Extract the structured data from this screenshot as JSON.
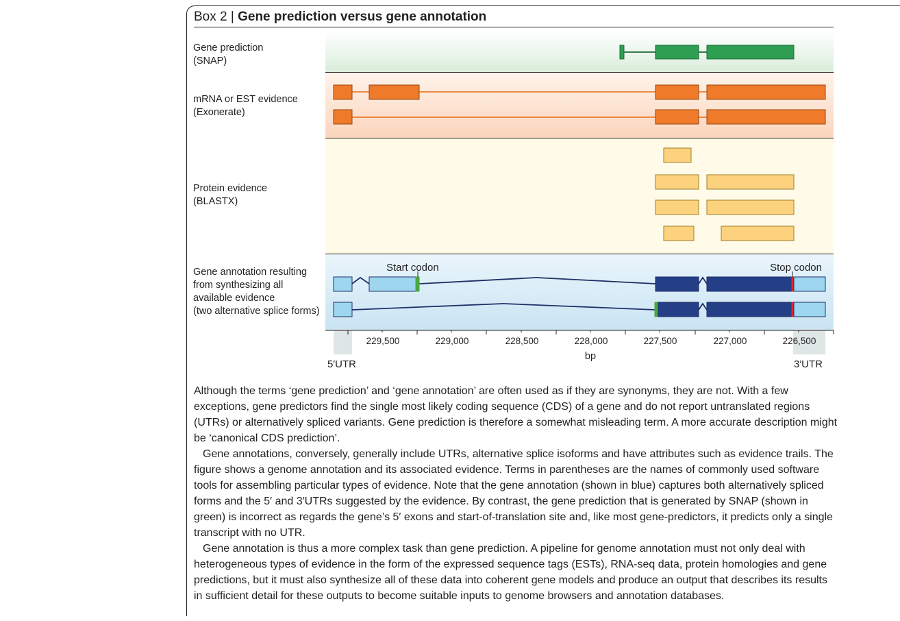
{
  "box": {
    "prefix": "Box 2 | ",
    "title": "Gene prediction versus gene annotation"
  },
  "tracks": {
    "prediction": {
      "line1": "Gene prediction",
      "line2": "(SNAP)",
      "color": "#2e9e52"
    },
    "mrna": {
      "line1": "mRNA or EST evidence",
      "line2": "(Exonerate)",
      "color": "#ee7a2a"
    },
    "protein": {
      "line1": "Protein evidence",
      "line2": "(BLASTX)",
      "color": "#fcd27e"
    },
    "annotation": {
      "line1": "Gene annotation resulting",
      "line2": "from synthesizing all",
      "line3": "available evidence",
      "line4": "(two alternative splice forms)",
      "utr_color": "#9dd6ee",
      "cds_color": "#253f86"
    }
  },
  "annotations": {
    "start_codon": "Start codon",
    "stop_codon": "Stop codon",
    "utr5": "5′UTR",
    "utr3": "3′UTR",
    "start_color": "#49a83e",
    "stop_color": "#e0232b"
  },
  "axis": {
    "label": "bp",
    "ticks": [
      "229,500",
      "229,000",
      "228,500",
      "228,000",
      "227,500",
      "227,000",
      "226,500"
    ]
  },
  "text": {
    "p1": "Although the terms ‘gene prediction’ and ‘gene annotation’ are often used as if they are synonyms, they are not. With a few exceptions, gene predictors find the single most likely coding sequence (CDS) of a gene and do not report untranslated regions (UTRs) or alternatively spliced variants. Gene prediction is therefore a somewhat misleading term. A more accurate description might be ‘canonical CDS prediction’.",
    "p2": "Gene annotations, conversely, generally include UTRs, alternative splice isoforms and have attributes such as evidence trails. The figure shows a genome annotation and its associated evidence. Terms in parentheses are the names of commonly used software tools for assembling particular types of evidence. Note that the gene annotation (shown in blue) captures both alternatively spliced forms and the 5′ and 3′UTRs suggested by the evidence. By contrast, the gene prediction that is generated by SNAP (shown in green) is incorrect as regards the gene’s 5′ exons and start-of-translation site and, like most gene-predictors, it predicts only a single transcript with no UTR.",
    "p3": "Gene annotation is thus a more complex task than gene prediction. A pipeline for genome annotation must not only deal with heterogeneous types of evidence in the form of the expressed sequence tags (ESTs), RNA-seq data, protein homologies and gene predictions, but it must also synthesize all of these data into coherent gene models and produce an output that describes its results in sufficient detail for these outputs to become suitable inputs to genome browsers and annotation databases."
  }
}
